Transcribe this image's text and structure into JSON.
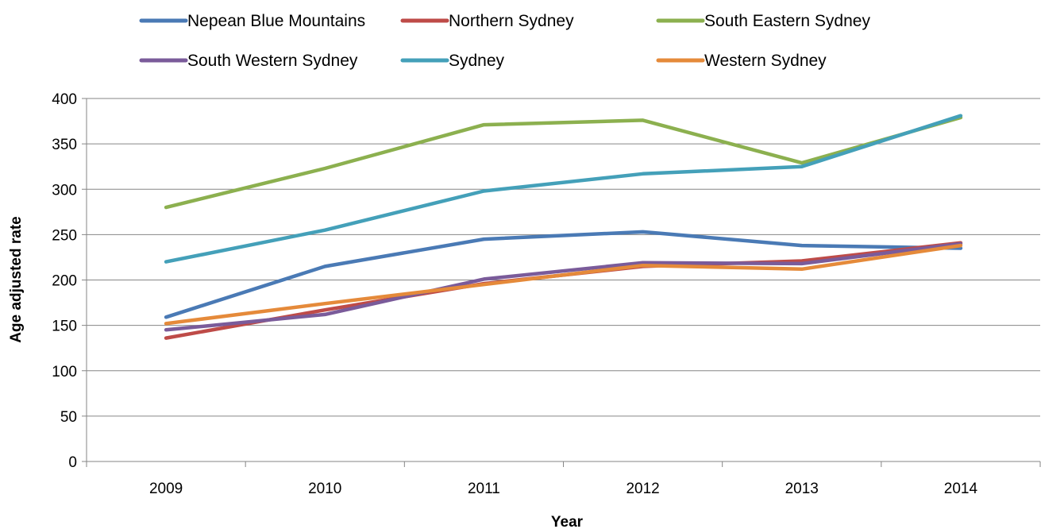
{
  "chart_data": {
    "type": "line",
    "title": "",
    "xlabel": "Year",
    "ylabel": "Age adjusted rate",
    "ylim": [
      0,
      400
    ],
    "yticks": [
      0,
      50,
      100,
      150,
      200,
      250,
      300,
      350,
      400
    ],
    "categories": [
      "2009",
      "2010",
      "2011",
      "2012",
      "2013",
      "2014"
    ],
    "grid": true,
    "legend_position": "top",
    "series": [
      {
        "name": "Nepean Blue Mountains",
        "color": "#4a7ab5",
        "values": [
          159,
          215,
          245,
          253,
          238,
          235
        ]
      },
      {
        "name": "Northern Sydney",
        "color": "#be4b48",
        "values": [
          136,
          167,
          196,
          215,
          221,
          241
        ]
      },
      {
        "name": "South Eastern Sydney",
        "color": "#8cb04f",
        "values": [
          280,
          323,
          371,
          376,
          329,
          379
        ]
      },
      {
        "name": "South Western Sydney",
        "color": "#7a5b9a",
        "values": [
          145,
          162,
          201,
          219,
          218,
          240
        ]
      },
      {
        "name": "Sydney",
        "color": "#44a0b9",
        "values": [
          220,
          255,
          298,
          317,
          325,
          381
        ]
      },
      {
        "name": "Western Sydney",
        "color": "#e58a3a",
        "values": [
          152,
          174,
          195,
          216,
          212,
          238
        ]
      }
    ]
  }
}
